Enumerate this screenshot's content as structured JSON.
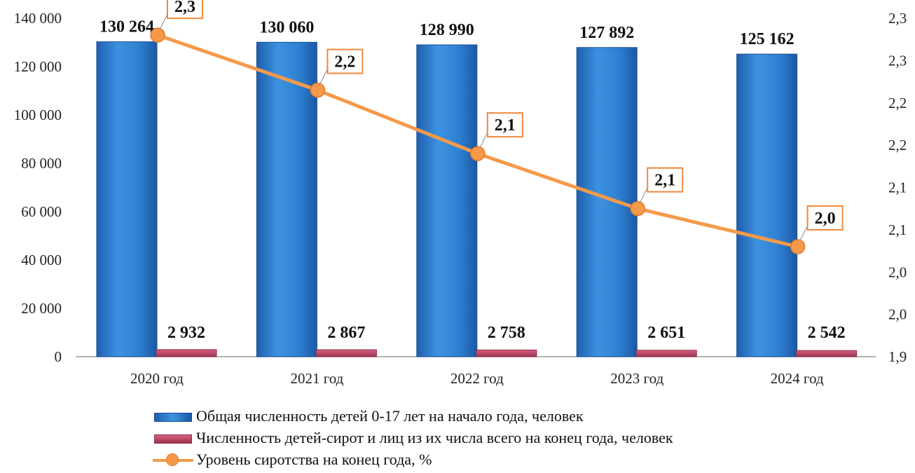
{
  "chart_data": {
    "type": "bar",
    "categories": [
      "2020 год",
      "2021 год",
      "2022 год",
      "2023 год",
      "2024 год"
    ],
    "y_left": {
      "ylim": [
        0,
        140000
      ],
      "tick_values": [
        0,
        20000,
        40000,
        60000,
        80000,
        100000,
        120000,
        140000
      ],
      "tick_labels": [
        "0",
        "20 000",
        "40 000",
        "60 000",
        "80 000",
        "100 000",
        "120 000",
        "140 000"
      ]
    },
    "y_right": {
      "ylim": [
        1.95,
        2.35
      ],
      "tick_values": [
        1.95,
        2.0,
        2.05,
        2.1,
        2.15,
        2.2,
        2.25,
        2.3,
        2.35
      ],
      "tick_labels": [
        "1,9",
        "2,0",
        "2,0",
        "2,1",
        "2,1",
        "2,2",
        "2,2",
        "2,3",
        "2,3"
      ]
    },
    "grid": false,
    "legend_position": "bottom",
    "series": [
      {
        "name": "Общая численность детей 0-17 лет на начало года, человек",
        "type": "bar",
        "axis": "left",
        "color": "#2f80d0",
        "values": [
          130264,
          130060,
          128990,
          127892,
          125162
        ],
        "labels": [
          "130 264",
          "130 060",
          "128 990",
          "127 892",
          "125 162"
        ]
      },
      {
        "name": "Численность детей-сирот и лиц из их числа всего на конец года, человек",
        "type": "bar",
        "axis": "left",
        "color": "#c8506e",
        "values": [
          2932,
          2867,
          2758,
          2651,
          2542
        ],
        "labels": [
          "2 932",
          "2 867",
          "2 758",
          "2 651",
          "2 542"
        ]
      },
      {
        "name": "Уровень сиротства на конец года, %",
        "type": "line",
        "axis": "right",
        "color": "#f59a4a",
        "values": [
          2.3,
          2.2,
          2.1,
          2.1,
          2.0
        ],
        "plot_values": [
          2.33,
          2.265,
          2.19,
          2.125,
          2.08
        ],
        "labels": [
          "2,3",
          "2,2",
          "2,1",
          "2,1",
          "2,0"
        ]
      }
    ]
  }
}
